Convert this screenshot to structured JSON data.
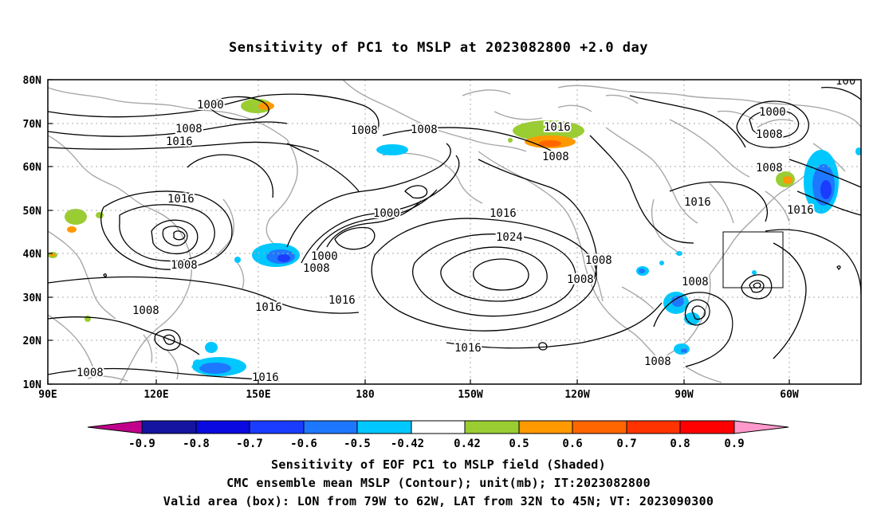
{
  "title": "Sensitivity of PC1 to MSLP at 2023082800 +2.0 day",
  "lat_ticks": [
    "80N",
    "70N",
    "60N",
    "50N",
    "40N",
    "30N",
    "20N",
    "10N"
  ],
  "lon_ticks": [
    "90E",
    "120E",
    "150E",
    "180",
    "150W",
    "120W",
    "90W",
    "60W"
  ],
  "contour_labels": [
    "1000",
    "1008",
    "1016",
    "1008",
    "1008",
    "1016",
    "1008",
    "1008",
    "1016",
    "1008",
    "1008",
    "1016",
    "1000",
    "1000",
    "1008",
    "1016",
    "1024",
    "1016",
    "1016",
    "1008",
    "1008",
    "1008",
    "1016",
    "1008",
    "1000",
    "1008",
    "1016",
    "1008",
    "100"
  ],
  "colorbar": {
    "labels": [
      "-0.9",
      "-0.8",
      "-0.7",
      "-0.6",
      "-0.5",
      "-0.42",
      "0.42",
      "0.5",
      "0.6",
      "0.7",
      "0.8",
      "0.9"
    ],
    "colors": [
      "#c0008a",
      "#1414a0",
      "#0a0ae0",
      "#1a3cff",
      "#1e78ff",
      "#20a0ff",
      "#00c8ff",
      "#ffffff",
      "#9acd32",
      "#ff9900",
      "#ff6600",
      "#ff3300",
      "#ff0000",
      "#ff99cc"
    ]
  },
  "captions": {
    "line1": "Sensitivity of EOF PC1 to MSLP field (Shaded)",
    "line2": "CMC ensemble mean MSLP (Contour); unit(mb); IT:2023082800",
    "line3": "Valid area (box): LON from 79W to 62W, LAT from 32N to 45N; VT: 2023090300"
  }
}
